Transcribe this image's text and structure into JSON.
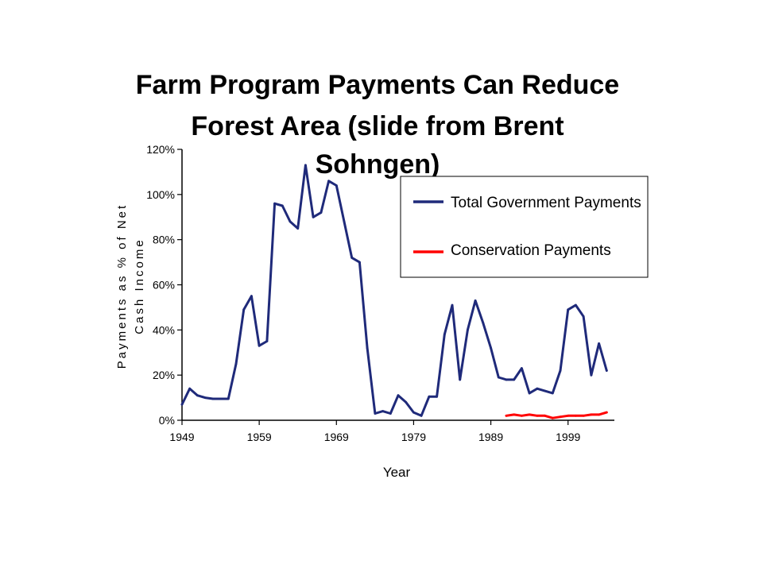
{
  "chart_data": {
    "type": "line",
    "title_lines": [
      "Farm Program Payments Can Reduce",
      "Forest Area (slide from Brent",
      "Sohngen)"
    ],
    "xlabel": "Year",
    "ylabel_lines": [
      "Payments as % of Net",
      "Cash Income"
    ],
    "xlim": [
      1949,
      2005
    ],
    "ylim": [
      0,
      120
    ],
    "x_ticks": [
      1949,
      1959,
      1969,
      1979,
      1989,
      1999
    ],
    "y_ticks": [
      "0%",
      "20%",
      "40%",
      "60%",
      "80%",
      "100%",
      "120%"
    ],
    "grid": false,
    "legend_position": "top-right",
    "series": [
      {
        "name": "Total Government Payments",
        "color": "#1f2a7a",
        "x": [
          1949,
          1950,
          1951,
          1952,
          1953,
          1954,
          1955,
          1956,
          1957,
          1958,
          1959,
          1960,
          1961,
          1962,
          1963,
          1964,
          1965,
          1966,
          1967,
          1968,
          1969,
          1970,
          1971,
          1972,
          1973,
          1974,
          1975,
          1976,
          1977,
          1978,
          1979,
          1980,
          1981,
          1982,
          1983,
          1984,
          1985,
          1986,
          1987,
          1988,
          1989,
          1990,
          1991,
          1992,
          1993,
          1994,
          1995,
          1996,
          1997,
          1998,
          1999,
          2000,
          2001,
          2002,
          2003,
          2004
        ],
        "values": [
          7,
          14,
          11,
          10,
          9.5,
          9.5,
          9.5,
          25,
          49,
          55,
          33,
          35,
          96,
          95,
          88,
          85,
          113,
          90,
          92,
          106,
          104,
          88,
          72,
          70,
          32,
          3,
          4,
          3,
          11,
          8,
          3.5,
          2,
          10.5,
          10.5,
          38,
          51,
          18,
          40,
          53,
          43,
          32,
          19,
          18,
          18,
          23,
          12,
          14,
          13,
          12,
          22,
          49,
          51,
          46,
          20,
          34,
          22
        ]
      },
      {
        "name": "Conservation Payments",
        "color": "#ff0000",
        "x": [
          1991,
          1992,
          1993,
          1994,
          1995,
          1996,
          1997,
          1998,
          1999,
          2000,
          2001,
          2002,
          2003,
          2004
        ],
        "values": [
          2,
          2.5,
          2,
          2.5,
          2,
          2,
          1,
          1.5,
          2,
          2,
          2,
          2.5,
          2.5,
          3.5
        ]
      }
    ]
  }
}
